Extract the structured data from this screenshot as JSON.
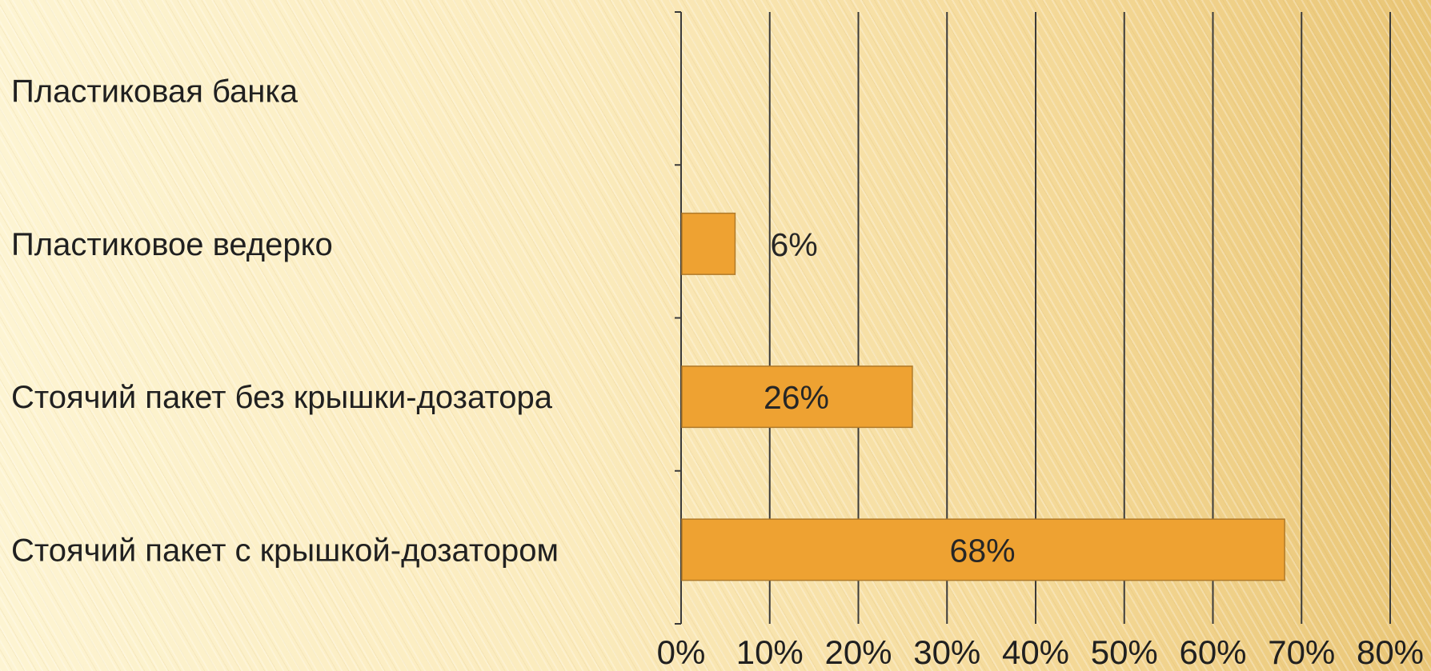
{
  "chart_data": {
    "type": "bar",
    "orientation": "horizontal",
    "categories": [
      "Пластиковая банка",
      "Пластиковое ведерко",
      "Стоячий пакет без крышки-дозатора",
      "Стоячий пакет с крышкой-дозатором"
    ],
    "values": [
      0,
      6,
      26,
      68
    ],
    "data_labels": [
      "",
      "6%",
      "26%",
      "68%"
    ],
    "x_ticks": [
      "0%",
      "10%",
      "20%",
      "30%",
      "40%",
      "50%",
      "60%",
      "70%",
      "80%"
    ],
    "xlim": [
      0,
      80
    ],
    "grid": true,
    "title": "",
    "xlabel": "",
    "ylabel": "",
    "colors": {
      "bar": "#eea232",
      "bar_border": "#b07a2a",
      "grid": "#3a3a3a",
      "axis": "#3a3a3a"
    }
  }
}
